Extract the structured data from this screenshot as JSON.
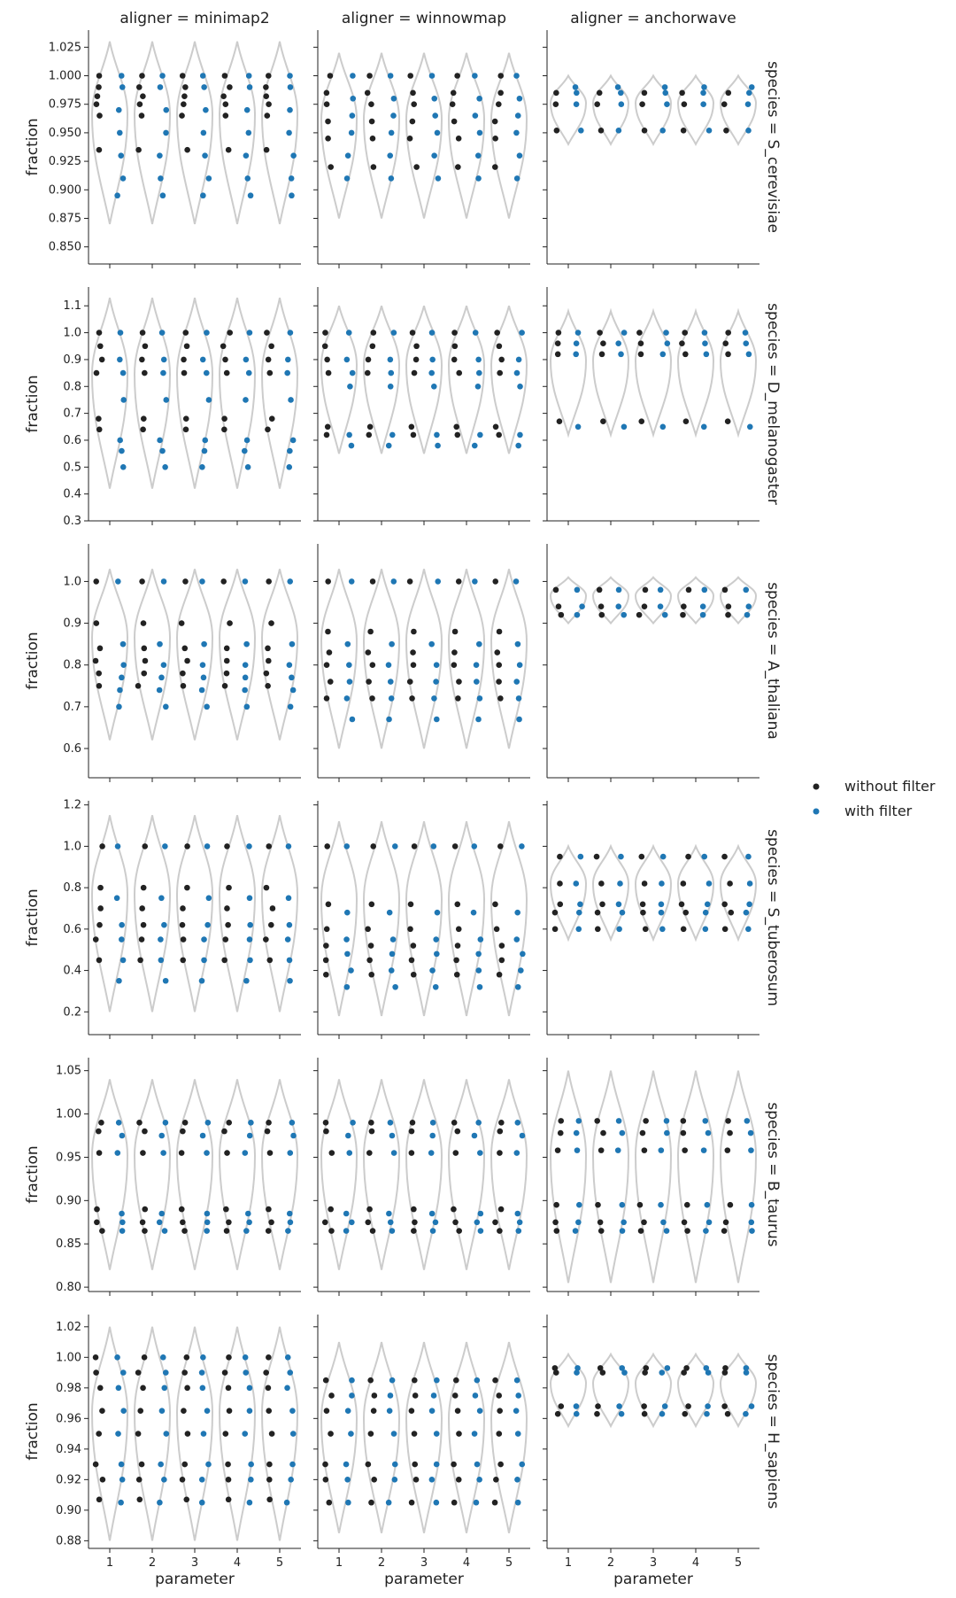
{
  "chart_data": {
    "type": "scatter",
    "subtype": "faceted violin + strip plot",
    "x_label": "parameter",
    "y_label": "fraction",
    "x_ticks": [
      "1",
      "2",
      "3",
      "4",
      "5"
    ],
    "columns": [
      "aligner = minimap2",
      "aligner = winnowmap",
      "aligner = anchorwave"
    ],
    "legend": {
      "position": "right",
      "items": [
        {
          "label": "without filter",
          "color": "#222222"
        },
        {
          "label": "with filter",
          "color": "#1f77b4"
        }
      ]
    },
    "violin_color": "#cccccc",
    "rows": [
      {
        "label": "species = S_cerevisiae",
        "ylim": [
          0.835,
          1.04
        ],
        "yticks": [
          "0.850",
          "0.875",
          "0.900",
          "0.925",
          "0.950",
          "0.975",
          "1.000",
          "1.025"
        ],
        "panels": [
          {
            "violin": [
              0.87,
              1.03
            ],
            "without": [
              0.935,
              0.965,
              0.975,
              0.982,
              0.99,
              1.0
            ],
            "with": [
              0.895,
              0.91,
              0.93,
              0.95,
              0.97,
              0.99,
              1.0
            ]
          },
          {
            "violin": [
              0.875,
              1.02
            ],
            "without": [
              0.92,
              0.945,
              0.96,
              0.975,
              0.985,
              1.0
            ],
            "with": [
              0.91,
              0.93,
              0.95,
              0.965,
              0.98,
              1.0
            ]
          },
          {
            "violin": [
              0.94,
              1.0
            ],
            "without": [
              0.952,
              0.975,
              0.985
            ],
            "with": [
              0.952,
              0.975,
              0.985,
              0.99
            ]
          }
        ]
      },
      {
        "label": "species = D_melanogaster",
        "ylim": [
          0.3,
          1.17
        ],
        "yticks": [
          "0.3",
          "0.4",
          "0.5",
          "0.6",
          "0.7",
          "0.8",
          "0.9",
          "1.0",
          "1.1"
        ],
        "panels": [
          {
            "violin": [
              0.42,
              1.13
            ],
            "without": [
              0.64,
              0.68,
              0.85,
              0.9,
              0.95,
              1.0
            ],
            "with": [
              0.5,
              0.56,
              0.6,
              0.75,
              0.85,
              0.9,
              1.0
            ]
          },
          {
            "violin": [
              0.55,
              1.1
            ],
            "without": [
              0.62,
              0.65,
              0.85,
              0.9,
              0.95,
              1.0
            ],
            "with": [
              0.58,
              0.62,
              0.8,
              0.85,
              0.9,
              1.0
            ]
          },
          {
            "violin": [
              0.62,
              1.08
            ],
            "without": [
              0.67,
              0.92,
              0.96,
              1.0
            ],
            "with": [
              0.65,
              0.92,
              0.96,
              1.0
            ]
          }
        ]
      },
      {
        "label": "species = A_thaliana",
        "ylim": [
          0.53,
          1.09
        ],
        "yticks": [
          "0.6",
          "0.7",
          "0.8",
          "0.9",
          "1.0"
        ],
        "panels": [
          {
            "violin": [
              0.62,
              1.03
            ],
            "without": [
              0.75,
              0.78,
              0.81,
              0.84,
              0.9,
              1.0
            ],
            "with": [
              0.7,
              0.74,
              0.77,
              0.8,
              0.85,
              1.0
            ]
          },
          {
            "violin": [
              0.6,
              1.03
            ],
            "without": [
              0.72,
              0.76,
              0.8,
              0.83,
              0.88,
              1.0
            ],
            "with": [
              0.67,
              0.72,
              0.76,
              0.8,
              0.85,
              1.0
            ]
          },
          {
            "violin": [
              0.9,
              1.01
            ],
            "without": [
              0.92,
              0.94,
              0.98
            ],
            "with": [
              0.92,
              0.94,
              0.98
            ]
          }
        ]
      },
      {
        "label": "species = S_tuberosum",
        "ylim": [
          0.09,
          1.22
        ],
        "yticks": [
          "0.2",
          "0.4",
          "0.6",
          "0.8",
          "1.0",
          "1.2"
        ],
        "panels": [
          {
            "violin": [
              0.2,
              1.15
            ],
            "without": [
              0.45,
              0.55,
              0.62,
              0.7,
              0.8,
              1.0
            ],
            "with": [
              0.35,
              0.45,
              0.55,
              0.62,
              0.75,
              1.0
            ]
          },
          {
            "violin": [
              0.18,
              1.12
            ],
            "without": [
              0.38,
              0.45,
              0.52,
              0.6,
              0.72,
              1.0
            ],
            "with": [
              0.32,
              0.4,
              0.48,
              0.55,
              0.68,
              1.0
            ]
          },
          {
            "violin": [
              0.55,
              1.0
            ],
            "without": [
              0.6,
              0.68,
              0.72,
              0.82,
              0.95
            ],
            "with": [
              0.6,
              0.68,
              0.72,
              0.82,
              0.95
            ]
          }
        ]
      },
      {
        "label": "species = B_taurus",
        "ylim": [
          0.795,
          1.065
        ],
        "yticks": [
          "0.80",
          "0.85",
          "0.90",
          "0.95",
          "1.00",
          "1.05"
        ],
        "panels": [
          {
            "violin": [
              0.82,
              1.04
            ],
            "without": [
              0.865,
              0.875,
              0.89,
              0.955,
              0.98,
              0.99
            ],
            "with": [
              0.865,
              0.875,
              0.885,
              0.955,
              0.975,
              0.99
            ]
          },
          {
            "violin": [
              0.82,
              1.04
            ],
            "without": [
              0.865,
              0.875,
              0.89,
              0.955,
              0.98,
              0.99
            ],
            "with": [
              0.865,
              0.875,
              0.885,
              0.955,
              0.975,
              0.99
            ]
          },
          {
            "violin": [
              0.805,
              1.05
            ],
            "without": [
              0.865,
              0.875,
              0.895,
              0.958,
              0.978,
              0.992
            ],
            "with": [
              0.865,
              0.875,
              0.895,
              0.958,
              0.978,
              0.992
            ]
          }
        ]
      },
      {
        "label": "species = H_sapiens",
        "ylim": [
          0.875,
          1.028
        ],
        "yticks": [
          "0.88",
          "0.90",
          "0.92",
          "0.94",
          "0.96",
          "0.98",
          "1.00",
          "1.02"
        ],
        "panels": [
          {
            "violin": [
              0.88,
              1.02
            ],
            "without": [
              0.907,
              0.92,
              0.93,
              0.95,
              0.965,
              0.98,
              0.99,
              1.0
            ],
            "with": [
              0.905,
              0.92,
              0.93,
              0.95,
              0.965,
              0.98,
              0.99,
              1.0
            ]
          },
          {
            "violin": [
              0.885,
              1.01
            ],
            "without": [
              0.905,
              0.92,
              0.93,
              0.95,
              0.965,
              0.975,
              0.985
            ],
            "with": [
              0.905,
              0.92,
              0.93,
              0.95,
              0.965,
              0.975,
              0.985
            ]
          },
          {
            "violin": [
              0.955,
              1.002
            ],
            "without": [
              0.963,
              0.968,
              0.99,
              0.993
            ],
            "with": [
              0.963,
              0.968,
              0.99,
              0.993
            ]
          }
        ]
      }
    ]
  }
}
